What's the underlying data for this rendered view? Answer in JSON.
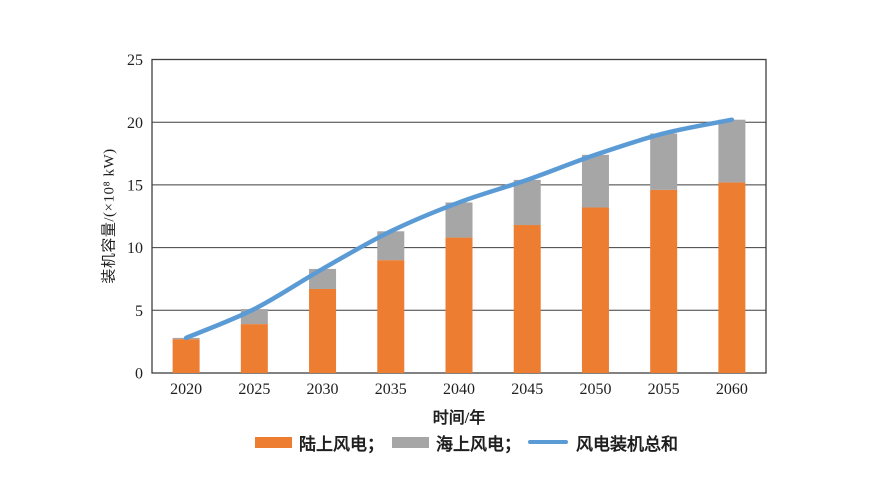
{
  "chart_data": {
    "type": "bar",
    "stacked": true,
    "title": "",
    "categories": [
      "2020",
      "2025",
      "2030",
      "2035",
      "2040",
      "2045",
      "2050",
      "2055",
      "2060"
    ],
    "series": [
      {
        "name": "陆上风电",
        "kind": "bar",
        "color": "#ED7D31",
        "values": [
          2.7,
          3.9,
          6.7,
          9.0,
          10.8,
          11.8,
          13.2,
          14.6,
          15.2
        ]
      },
      {
        "name": "海上风电",
        "kind": "bar",
        "color": "#A6A6A6",
        "values": [
          0.1,
          1.2,
          1.6,
          2.3,
          2.8,
          3.6,
          4.2,
          4.5,
          5.0
        ]
      },
      {
        "name": "风电装机总和",
        "kind": "line",
        "color": "#5B9BD5",
        "values": [
          2.8,
          5.1,
          8.3,
          11.3,
          13.6,
          15.4,
          17.4,
          19.1,
          20.2
        ]
      }
    ],
    "xlabel": "时间/年",
    "ylabel": "装机容量/(×10⁸ kW)",
    "ylim": [
      0,
      25
    ],
    "y_ticks": [
      0,
      5,
      10,
      15,
      20,
      25
    ],
    "grid": "horizontal",
    "legend_position": "bottom"
  },
  "legend": {
    "items": [
      {
        "label": "陆上风电；",
        "color": "#ED7D31",
        "swatch": "bar"
      },
      {
        "label": "海上风电；",
        "color": "#A6A6A6",
        "swatch": "bar"
      },
      {
        "label": "风电装机总和",
        "color": "#5B9BD5",
        "swatch": "line"
      }
    ]
  },
  "colors": {
    "axis": "#3f3f3f",
    "grid": "#3f3f3f",
    "tick_text": "#1f1f1f",
    "background": "#ffffff"
  }
}
